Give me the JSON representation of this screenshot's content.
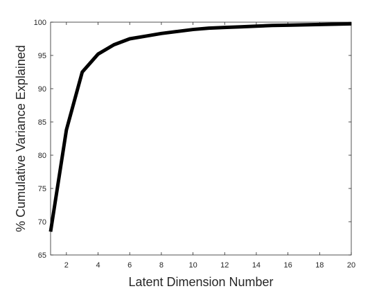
{
  "chart_data": {
    "type": "line",
    "title": "",
    "xlabel": "Latent Dimension Number",
    "ylabel": "% Cumulative Variance Explained",
    "xlim": [
      1,
      20
    ],
    "ylim": [
      65,
      100
    ],
    "x_ticks": [
      2,
      4,
      6,
      8,
      10,
      12,
      14,
      16,
      18,
      20
    ],
    "y_ticks": [
      65,
      70,
      75,
      80,
      85,
      90,
      95,
      100
    ],
    "grid": false,
    "legend": "none",
    "series": [
      {
        "color": "#000000",
        "x": [
          1,
          2,
          3,
          4,
          5,
          6,
          7,
          8,
          9,
          10,
          11,
          12,
          13,
          14,
          15,
          16,
          17,
          18,
          19,
          20
        ],
        "values": [
          68.5,
          83.8,
          92.5,
          95.2,
          96.6,
          97.5,
          97.9,
          98.3,
          98.6,
          98.9,
          99.1,
          99.2,
          99.3,
          99.4,
          99.5,
          99.55,
          99.6,
          99.65,
          99.7,
          99.75
        ]
      }
    ]
  }
}
